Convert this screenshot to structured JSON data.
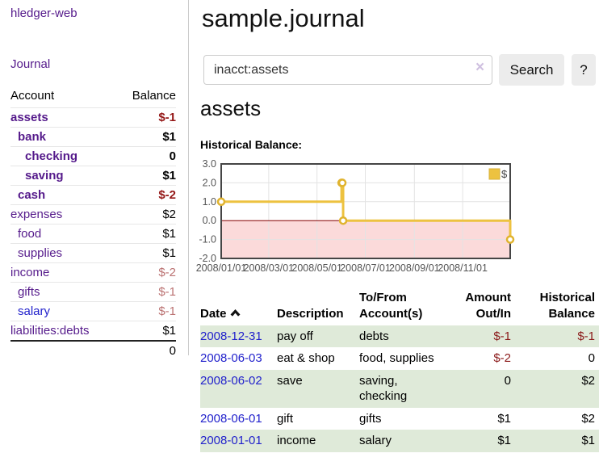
{
  "app": {
    "brand": "hledger-web",
    "nav_journal": "Journal"
  },
  "sidebar": {
    "accounts_header": {
      "account": "Account",
      "balance": "Balance"
    },
    "accounts": [
      {
        "label": "assets",
        "depth": 0,
        "bold": true,
        "balance": "$-1",
        "negative": "strong",
        "blue": false
      },
      {
        "label": "bank",
        "depth": 1,
        "bold": true,
        "balance": "$1",
        "negative": "none",
        "blue": false
      },
      {
        "label": "checking",
        "depth": 2,
        "bold": true,
        "balance": "0",
        "negative": "none",
        "blue": false
      },
      {
        "label": "saving",
        "depth": 2,
        "bold": true,
        "balance": "$1",
        "negative": "none",
        "blue": false
      },
      {
        "label": "cash",
        "depth": 1,
        "bold": true,
        "balance": "$-2",
        "negative": "strong",
        "blue": false
      },
      {
        "label": "expenses",
        "depth": 0,
        "bold": false,
        "balance": "$2",
        "negative": "none",
        "blue": false
      },
      {
        "label": "food",
        "depth": 1,
        "bold": false,
        "balance": "$1",
        "negative": "none",
        "blue": false
      },
      {
        "label": "supplies",
        "depth": 1,
        "bold": false,
        "balance": "$1",
        "negative": "none",
        "blue": false
      },
      {
        "label": "income",
        "depth": 0,
        "bold": false,
        "balance": "$-2",
        "negative": "muted",
        "blue": false
      },
      {
        "label": "gifts",
        "depth": 1,
        "bold": false,
        "balance": "$-1",
        "negative": "muted",
        "blue": false
      },
      {
        "label": "salary",
        "depth": 1,
        "bold": false,
        "balance": "$-1",
        "negative": "muted",
        "blue": true
      },
      {
        "label": "liabilities:debts",
        "depth": 0,
        "bold": false,
        "balance": "$1",
        "negative": "none",
        "blue": false
      }
    ],
    "total": "0"
  },
  "header": {
    "title": "sample.journal"
  },
  "search": {
    "value": "inacct:assets",
    "clear_glyph": "×",
    "button_label": "Search",
    "help_label": "?"
  },
  "register": {
    "heading": "assets",
    "chart_label": "Historical Balance:",
    "table": {
      "columns": [
        "Date",
        "Description",
        "To/From Account(s)",
        "Amount Out/In",
        "Historical Balance"
      ],
      "rows": [
        {
          "date": "2008-12-31",
          "description": "pay off",
          "accounts": "debts",
          "amount": "$-1",
          "amount_negative": true,
          "balance": "$-1",
          "balance_negative": true,
          "stripe": true
        },
        {
          "date": "2008-06-03",
          "description": "eat & shop",
          "accounts": "food, supplies",
          "amount": "$-2",
          "amount_negative": true,
          "balance": "0",
          "balance_negative": false,
          "stripe": false
        },
        {
          "date": "2008-06-02",
          "description": "save",
          "accounts": "saving, checking",
          "amount": "0",
          "amount_negative": false,
          "balance": "$2",
          "balance_negative": false,
          "stripe": true
        },
        {
          "date": "2008-06-01",
          "description": "gift",
          "accounts": "gifts",
          "amount": "$1",
          "amount_negative": false,
          "balance": "$2",
          "balance_negative": false,
          "stripe": false
        },
        {
          "date": "2008-01-01",
          "description": "income",
          "accounts": "salary",
          "amount": "$1",
          "amount_negative": false,
          "balance": "$1",
          "balance_negative": false,
          "stripe": true
        }
      ]
    }
  },
  "chart_data": {
    "type": "line",
    "step": true,
    "title": "Historical Balance:",
    "legend": "$",
    "legend_position": "top-right",
    "grid": true,
    "xlim": [
      "2008-01-01",
      "2008-12-31"
    ],
    "ylim": [
      -2,
      3
    ],
    "y_ticks": [
      3.0,
      2.0,
      1.0,
      0.0,
      -1.0,
      -2.0
    ],
    "x_ticks": [
      "2008/01/01",
      "2008/03/01",
      "2008/05/01",
      "2008/07/01",
      "2008/09/01",
      "2008/11/01"
    ],
    "series": [
      {
        "name": "$",
        "points": [
          [
            "2008-01-01",
            1
          ],
          [
            "2008-06-01",
            2
          ],
          [
            "2008-06-02",
            2
          ],
          [
            "2008-06-03",
            0
          ],
          [
            "2008-12-31",
            -1
          ]
        ]
      }
    ],
    "colors": {
      "line": "#edc240",
      "marker_ring": "#e0b32e",
      "marker_fill": "#ffffff",
      "negative_region": "#fbdada",
      "zero_line": "#8b0000",
      "gridline": "#e3e3e3",
      "plot_border": "#454545",
      "axis_text": "#545454"
    }
  },
  "icons": {
    "sort": "chevron-up-icon",
    "clear": "x-clear-icon"
  },
  "colors": {
    "link_purple": "#551a8b",
    "link_blue": "#2222cc",
    "negative_strong": "#941717",
    "negative_muted": "#bb7272",
    "negative_table": "#8b1a1a",
    "row_stripe_green": "#dfead9",
    "button_bg": "#ececec"
  }
}
